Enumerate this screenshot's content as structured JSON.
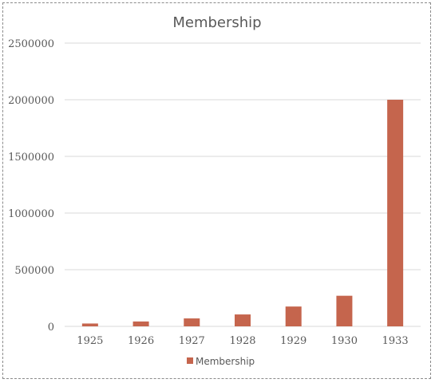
{
  "chart_data": {
    "type": "bar",
    "title": "Membership",
    "categories": [
      "1925",
      "1926",
      "1927",
      "1928",
      "1929",
      "1930",
      "1933"
    ],
    "series": [
      {
        "name": "Membership",
        "values": [
          25000,
          43000,
          70000,
          105000,
          175000,
          270000,
          2000000
        ],
        "color": "#c5654d"
      }
    ],
    "xlabel": "",
    "ylabel": "",
    "ylim": [
      0,
      2500000
    ],
    "yticks": [
      "0",
      "500000",
      "1000000",
      "1500000",
      "2000000",
      "2500000"
    ],
    "grid": true,
    "legend_position": "bottom"
  }
}
